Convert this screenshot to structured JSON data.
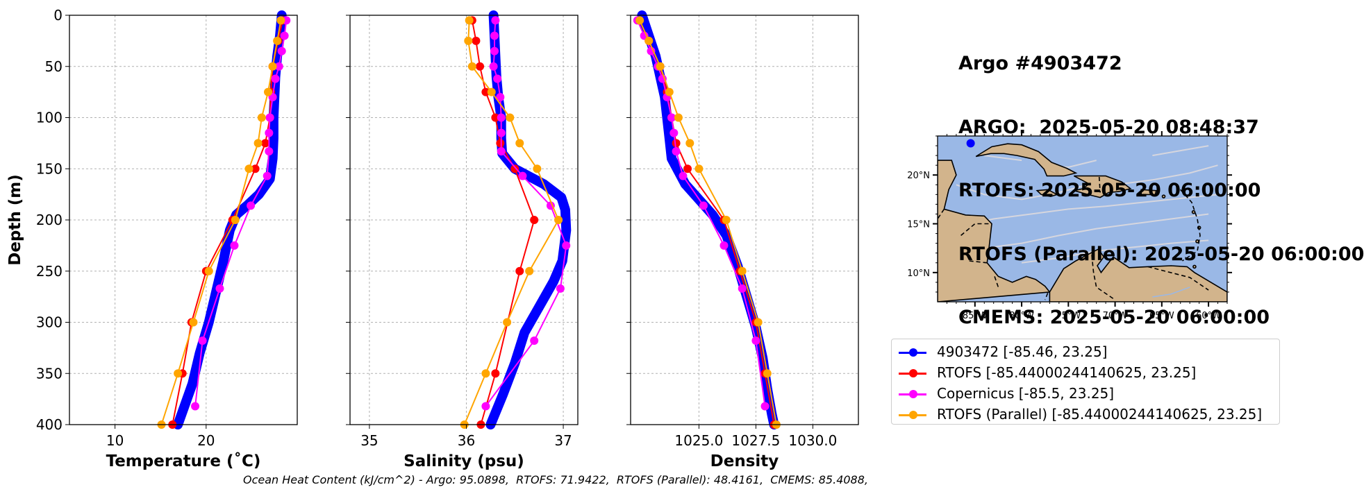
{
  "info": {
    "lines": [
      "Argo #4903472",
      "ARGO:  2025-05-20 08:48:37",
      "RTOFS: 2025-05-20 06:00:00",
      "RTOFS (Parallel): 2025-05-20 06:00:00",
      "CMEMS: 2025-05-20 06:00:00"
    ]
  },
  "footer": {
    "ohc": "Ocean Heat Content (kJ/cm^2) - Argo: 95.0898,  RTOFS: 71.9422,  RTOFS (Parallel): 48.4161,  CMEMS: 85.4088,"
  },
  "legend": [
    {
      "label": "4903472 [-85.46, 23.25]",
      "color": "#0000ff"
    },
    {
      "label": "RTOFS [-85.44000244140625, 23.25]",
      "color": "#ff0000"
    },
    {
      "label": "Copernicus [-85.5, 23.25]",
      "color": "#ff00ff"
    },
    {
      "label": "RTOFS (Parallel) [-85.44000244140625, 23.25]",
      "color": "#ffa500"
    }
  ],
  "colors": {
    "argo": "#0000ff",
    "rtofs": "#ff0000",
    "copernicus": "#ff00ff",
    "parallel": "#ffa500",
    "ocean": "#9ab8e6",
    "land": "#d2b48c"
  },
  "chart_data": [
    {
      "type": "line",
      "xlabel": "Temperature (˚C)",
      "ylabel": "Depth (m)",
      "xlim": [
        5,
        30
      ],
      "ylim": [
        400,
        0
      ],
      "xticks": [
        10,
        20
      ],
      "yticks": [
        0,
        50,
        100,
        150,
        200,
        250,
        300,
        350,
        400
      ],
      "grid": true,
      "series": [
        {
          "key": "argo",
          "points": [
            [
              28.3,
              0
            ],
            [
              28.1,
              20
            ],
            [
              27.8,
              40
            ],
            [
              27.6,
              60
            ],
            [
              27.5,
              80
            ],
            [
              27.4,
              100
            ],
            [
              27.4,
              120
            ],
            [
              27.3,
              140
            ],
            [
              27.0,
              160
            ],
            [
              25.8,
              175
            ],
            [
              24.6,
              185
            ],
            [
              23.3,
              195
            ],
            [
              22.6,
              210
            ],
            [
              21.9,
              240
            ],
            [
              21.1,
              270
            ],
            [
              20.3,
              300
            ],
            [
              19.3,
              330
            ],
            [
              18.5,
              360
            ],
            [
              17.5,
              385
            ],
            [
              16.9,
              400
            ]
          ]
        },
        {
          "key": "rtofs",
          "points": [
            [
              28.4,
              5
            ],
            [
              27.9,
              25
            ],
            [
              27.3,
              50
            ],
            [
              27.1,
              75
            ],
            [
              27.0,
              100
            ],
            [
              26.5,
              125
            ],
            [
              25.4,
              150
            ],
            [
              22.9,
              200
            ],
            [
              20.0,
              250
            ],
            [
              18.4,
              300
            ],
            [
              17.4,
              350
            ],
            [
              16.3,
              400
            ]
          ]
        },
        {
          "key": "copernicus",
          "points": [
            [
              28.8,
              5
            ],
            [
              28.6,
              20
            ],
            [
              28.3,
              35
            ],
            [
              28.0,
              50
            ],
            [
              27.6,
              62
            ],
            [
              27.3,
              80
            ],
            [
              27.0,
              100
            ],
            [
              26.9,
              115
            ],
            [
              26.9,
              133
            ],
            [
              26.7,
              157
            ],
            [
              24.9,
              186
            ],
            [
              23.1,
              225
            ],
            [
              21.5,
              267
            ],
            [
              19.6,
              318
            ],
            [
              18.8,
              382
            ]
          ]
        },
        {
          "key": "parallel",
          "points": [
            [
              28.2,
              5
            ],
            [
              27.8,
              25
            ],
            [
              27.3,
              50
            ],
            [
              26.8,
              75
            ],
            [
              26.1,
              100
            ],
            [
              25.7,
              125
            ],
            [
              24.7,
              150
            ],
            [
              23.2,
              200
            ],
            [
              20.3,
              250
            ],
            [
              18.6,
              300
            ],
            [
              16.9,
              350
            ],
            [
              15.1,
              400
            ]
          ]
        }
      ]
    },
    {
      "type": "line",
      "xlabel": "Salinity (psu)",
      "ylabel": "",
      "xlim": [
        34.8,
        37.15
      ],
      "ylim": [
        400,
        0
      ],
      "xticks": [
        35,
        36,
        37
      ],
      "yticks": [
        0,
        50,
        100,
        150,
        200,
        250,
        300,
        350,
        400
      ],
      "grid": true,
      "series": [
        {
          "key": "argo",
          "points": [
            [
              36.28,
              0
            ],
            [
              36.29,
              20
            ],
            [
              36.3,
              40
            ],
            [
              36.31,
              60
            ],
            [
              36.33,
              80
            ],
            [
              36.36,
              100
            ],
            [
              36.36,
              120
            ],
            [
              36.37,
              135
            ],
            [
              36.5,
              150
            ],
            [
              36.8,
              165
            ],
            [
              36.98,
              178
            ],
            [
              37.02,
              190
            ],
            [
              37.03,
              210
            ],
            [
              36.99,
              240
            ],
            [
              36.9,
              260
            ],
            [
              36.78,
              280
            ],
            [
              36.6,
              310
            ],
            [
              36.5,
              340
            ],
            [
              36.38,
              370
            ],
            [
              36.25,
              400
            ]
          ]
        },
        {
          "key": "rtofs",
          "points": [
            [
              36.06,
              5
            ],
            [
              36.1,
              25
            ],
            [
              36.14,
              50
            ],
            [
              36.2,
              75
            ],
            [
              36.3,
              100
            ],
            [
              36.35,
              125
            ],
            [
              36.5,
              150
            ],
            [
              36.7,
              200
            ],
            [
              36.55,
              250
            ],
            [
              36.3,
              350
            ],
            [
              36.15,
              400
            ]
          ]
        },
        {
          "key": "copernicus",
          "points": [
            [
              36.3,
              5
            ],
            [
              36.29,
              20
            ],
            [
              36.29,
              35
            ],
            [
              36.28,
              50
            ],
            [
              36.32,
              62
            ],
            [
              36.35,
              80
            ],
            [
              36.36,
              100
            ],
            [
              36.36,
              115
            ],
            [
              36.36,
              133
            ],
            [
              36.58,
              157
            ],
            [
              36.87,
              186
            ],
            [
              37.03,
              225
            ],
            [
              36.97,
              267
            ],
            [
              36.7,
              318
            ],
            [
              36.2,
              382
            ]
          ]
        },
        {
          "key": "parallel",
          "points": [
            [
              36.03,
              5
            ],
            [
              36.02,
              25
            ],
            [
              36.06,
              50
            ],
            [
              36.26,
              75
            ],
            [
              36.45,
              100
            ],
            [
              36.55,
              125
            ],
            [
              36.73,
              150
            ],
            [
              36.95,
              200
            ],
            [
              36.65,
              250
            ],
            [
              36.42,
              300
            ],
            [
              36.2,
              350
            ],
            [
              35.98,
              400
            ]
          ]
        }
      ]
    },
    {
      "type": "line",
      "xlabel": "Density",
      "ylabel": "",
      "xlim": [
        1022.0,
        1032.0
      ],
      "ylim": [
        400,
        0
      ],
      "xticks": [
        1025.0,
        1027.5,
        1030.0
      ],
      "xtick_labels": [
        "1025.0",
        "1027.5",
        "1030.0"
      ],
      "yticks": [
        0,
        50,
        100,
        150,
        200,
        250,
        300,
        350,
        400
      ],
      "grid": true,
      "series": [
        {
          "key": "argo",
          "points": [
            [
              1022.5,
              0
            ],
            [
              1022.8,
              20
            ],
            [
              1023.1,
              40
            ],
            [
              1023.3,
              60
            ],
            [
              1023.5,
              80
            ],
            [
              1023.6,
              100
            ],
            [
              1023.7,
              120
            ],
            [
              1023.8,
              140
            ],
            [
              1024.4,
              165
            ],
            [
              1025.0,
              180
            ],
            [
              1025.6,
              195
            ],
            [
              1026.2,
              215
            ],
            [
              1026.7,
              245
            ],
            [
              1027.1,
              275
            ],
            [
              1027.5,
              305
            ],
            [
              1027.8,
              335
            ],
            [
              1028.0,
              365
            ],
            [
              1028.2,
              390
            ],
            [
              1028.3,
              400
            ]
          ]
        },
        {
          "key": "rtofs",
          "points": [
            [
              1022.4,
              5
            ],
            [
              1022.8,
              25
            ],
            [
              1023.3,
              50
            ],
            [
              1023.6,
              75
            ],
            [
              1023.8,
              100
            ],
            [
              1024.0,
              125
            ],
            [
              1024.5,
              150
            ],
            [
              1026.1,
              200
            ],
            [
              1026.8,
              250
            ],
            [
              1027.5,
              300
            ],
            [
              1027.9,
              350
            ],
            [
              1028.3,
              400
            ]
          ]
        },
        {
          "key": "copernicus",
          "points": [
            [
              1022.3,
              5
            ],
            [
              1022.6,
              20
            ],
            [
              1022.9,
              35
            ],
            [
              1023.2,
              50
            ],
            [
              1023.4,
              62
            ],
            [
              1023.6,
              80
            ],
            [
              1023.8,
              100
            ],
            [
              1023.9,
              115
            ],
            [
              1024.0,
              133
            ],
            [
              1024.3,
              157
            ],
            [
              1025.2,
              186
            ],
            [
              1026.1,
              225
            ],
            [
              1026.9,
              267
            ],
            [
              1027.5,
              318
            ],
            [
              1027.9,
              382
            ]
          ]
        },
        {
          "key": "parallel",
          "points": [
            [
              1022.4,
              5
            ],
            [
              1022.8,
              25
            ],
            [
              1023.3,
              50
            ],
            [
              1023.7,
              75
            ],
            [
              1024.1,
              100
            ],
            [
              1024.6,
              125
            ],
            [
              1025.0,
              150
            ],
            [
              1026.2,
              200
            ],
            [
              1026.9,
              250
            ],
            [
              1027.6,
              300
            ],
            [
              1028.0,
              350
            ],
            [
              1028.4,
              400
            ]
          ]
        }
      ]
    }
  ],
  "map": {
    "lon_range": [
      -89,
      -58
    ],
    "lat_range": [
      7,
      24
    ],
    "xticks": [
      -85,
      -80,
      -75,
      -70,
      -65,
      -60
    ],
    "xtick_labels": [
      "85°W",
      "80°W",
      "75°W",
      "70°W",
      "65°W",
      "60°W"
    ],
    "yticks": [
      10,
      15,
      20
    ],
    "ytick_labels": [
      "10°N",
      "15°N",
      "20°N"
    ],
    "marker": [
      -85.46,
      23.25
    ]
  }
}
